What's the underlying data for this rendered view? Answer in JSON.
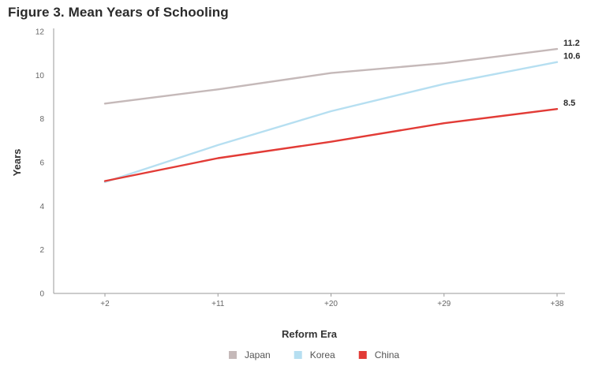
{
  "chart_data": {
    "type": "line",
    "title": "Figure 3. Mean Years of Schooling",
    "xlabel": "Reform Era",
    "ylabel": "Years",
    "categories": [
      "+2",
      "+11",
      "+20",
      "+29",
      "+38"
    ],
    "yticks": [
      0,
      2,
      4,
      6,
      8,
      10,
      12
    ],
    "ylim": [
      0,
      12
    ],
    "legend_position": "bottom-center",
    "grid": false,
    "series": [
      {
        "name": "Japan",
        "color": "#c5b9b9",
        "values": [
          8.7,
          9.35,
          10.1,
          10.55,
          11.2
        ],
        "end_label": "11.2"
      },
      {
        "name": "Korea",
        "color": "#b6dff1",
        "values": [
          5.1,
          6.8,
          8.35,
          9.6,
          10.6
        ],
        "end_label": "10.6"
      },
      {
        "name": "China",
        "color": "#e23b36",
        "values": [
          5.15,
          6.2,
          6.95,
          7.8,
          8.45
        ],
        "end_label": "8.5"
      }
    ]
  }
}
